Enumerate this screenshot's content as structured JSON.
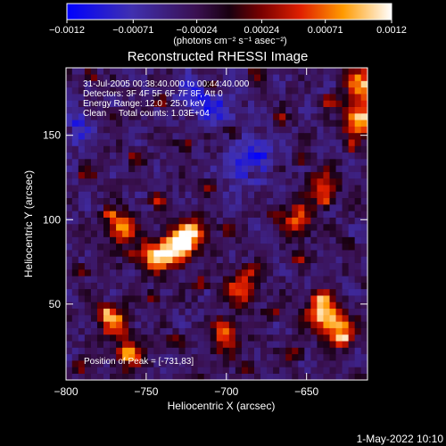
{
  "chart_data": {
    "type": "heatmap",
    "title": "Reconstructed RHESSI Image",
    "xlabel": "Heliocentric X (arcsec)",
    "ylabel": "Heliocentric Y (arcsec)",
    "xlim": [
      -800,
      -612
    ],
    "ylim": [
      5,
      190
    ],
    "x_ticks": [
      -800,
      -750,
      -700,
      -650
    ],
    "x_tick_labels": [
      "−800",
      "−750",
      "−700",
      "−650"
    ],
    "y_ticks": [
      50,
      100,
      150
    ],
    "y_tick_labels": [
      "50",
      "100",
      "150"
    ],
    "colorbar": {
      "range": [
        -0.0012,
        0.0012
      ],
      "ticks": [
        -0.0012,
        -0.00071,
        -0.00024,
        0.00024,
        0.00071,
        0.0012
      ],
      "tick_labels": [
        "−0.0012",
        "−0.00071",
        "−0.00024",
        "0.00024",
        "0.00071",
        "0.0012"
      ],
      "unit_label": "(photons cm⁻² s⁻¹ asec⁻²)",
      "colormap": "rainbow-to-fire"
    },
    "annotations": {
      "line1": "31-Jul-2005 00:38:40.000 to 00:44:40.000",
      "line2": "Detectors: 3F 4F 5F 6F 7F 8F, Att 0",
      "line3": "Energy Range: 12.0 - 25.0 keV",
      "line4": "Clean     Total counts: 1.03E+04",
      "peak": "Position of Peak = [-731,83]"
    },
    "peak_position": [
      -731,
      83
    ],
    "hotspots": [
      {
        "x": -731,
        "y": 83,
        "intensity": 1.0
      },
      {
        "x": -745,
        "y": 78,
        "intensity": 0.85
      },
      {
        "x": -722,
        "y": 92,
        "intensity": 0.8
      },
      {
        "x": -617,
        "y": 160,
        "intensity": 0.95
      },
      {
        "x": -615,
        "y": 180,
        "intensity": 0.85
      },
      {
        "x": -640,
        "y": 45,
        "intensity": 0.9
      },
      {
        "x": -630,
        "y": 35,
        "intensity": 0.8
      },
      {
        "x": -765,
        "y": 95,
        "intensity": 0.75
      },
      {
        "x": -770,
        "y": 40,
        "intensity": 0.7
      },
      {
        "x": -690,
        "y": 60,
        "intensity": 0.7
      },
      {
        "x": -655,
        "y": 100,
        "intensity": 0.65
      },
      {
        "x": -700,
        "y": 30,
        "intensity": 0.6
      },
      {
        "x": -640,
        "y": 120,
        "intensity": 0.55
      },
      {
        "x": -760,
        "y": 20,
        "intensity": 0.55
      }
    ],
    "cold_regions": [
      {
        "x": -795,
        "y": 155
      },
      {
        "x": -705,
        "y": 165
      },
      {
        "x": -690,
        "y": 130
      },
      {
        "x": -680,
        "y": 140
      },
      {
        "x": -720,
        "y": 175
      }
    ]
  },
  "footer": {
    "date": "1-May-2022 10:10"
  }
}
